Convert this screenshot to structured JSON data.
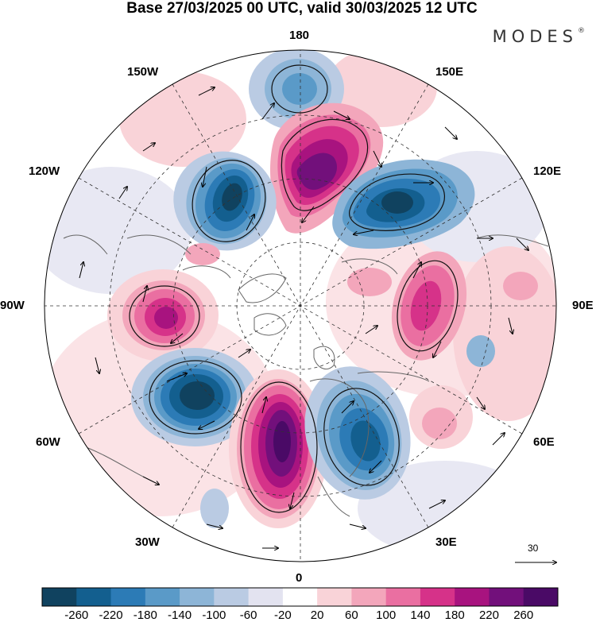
{
  "title": "Base 27/03/2025 00 UTC, valid 30/03/2025 12 UTC",
  "brand": "MODES",
  "brand_mark": "®",
  "longitude_labels": {
    "top": "180",
    "bottom": "0",
    "left": "90W",
    "right": "90E",
    "upper_left_1": "150W",
    "upper_left_2": "120W",
    "upper_right_1": "150E",
    "upper_right_2": "120E",
    "lower_left_1": "60W",
    "lower_left_2": "30W",
    "lower_right_1": "60E",
    "lower_right_2": "30E"
  },
  "reference_vector": "30",
  "colorbar": {
    "ticks": [
      "-260",
      "-220",
      "-180",
      "-140",
      "-100",
      "-60",
      "-20",
      "20",
      "60",
      "100",
      "140",
      "180",
      "220",
      "260"
    ],
    "colors": [
      "#10425f",
      "#135f8f",
      "#2c7bb6",
      "#5a9ac8",
      "#8db5d7",
      "#bacbe3",
      "#e3e3f0",
      "#ffffff",
      "#f9d3d8",
      "#f3a6bb",
      "#ea6fa1",
      "#d63289",
      "#a8137f",
      "#72107b",
      "#4a0a66"
    ]
  },
  "anomaly_centers": [
    {
      "name": "positive-anomaly-north-pacific",
      "sign": "+",
      "level": "260"
    },
    {
      "name": "negative-anomaly-east-siberia",
      "sign": "-",
      "level": "-260"
    },
    {
      "name": "negative-anomaly-alaska",
      "sign": "-",
      "level": "-260"
    },
    {
      "name": "positive-anomaly-canada",
      "sign": "+",
      "level": "220"
    },
    {
      "name": "negative-anomaly-labrador-sea",
      "sign": "-",
      "level": "-260"
    },
    {
      "name": "positive-anomaly-north-atlantic",
      "sign": "+",
      "level": "260"
    },
    {
      "name": "negative-anomaly-scandinavia",
      "sign": "-",
      "level": "-220"
    },
    {
      "name": "positive-anomaly-central-siberia",
      "sign": "+",
      "level": "180"
    },
    {
      "name": "negative-anomaly-bering-sea",
      "sign": "-",
      "level": "-140"
    }
  ]
}
